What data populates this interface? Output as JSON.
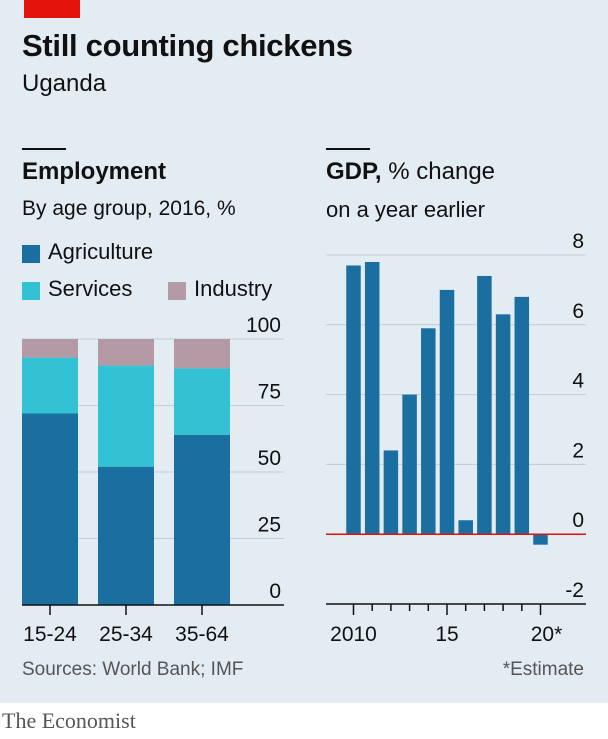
{
  "header": {
    "title": "Still counting chickens",
    "subtitle": "Uganda"
  },
  "employment": {
    "title": "Employment",
    "subtitle": "By age group, 2016, %",
    "legend": [
      "Agriculture",
      "Services",
      "Industry"
    ]
  },
  "gdp": {
    "title_bold": "GDP,",
    "title_rest": " % change",
    "subtitle": "on a year earlier"
  },
  "footer": {
    "source": "Sources: World Bank; IMF",
    "note": "*Estimate",
    "brand": "The Economist"
  },
  "colors": {
    "agriculture": "#1a6ea0",
    "services": "#33c1d4",
    "industry": "#b49aa4",
    "gdp_bar": "#1a6ea0",
    "zero_line": "#e3120b",
    "panel": "#e3ecf2",
    "red_tag": "#e3120b"
  },
  "chart_data": [
    {
      "type": "bar",
      "stacked": true,
      "title": "Employment",
      "subtitle": "By age group, 2016, %",
      "categories": [
        "15-24",
        "25-34",
        "35-64"
      ],
      "series": [
        {
          "name": "Agriculture",
          "values": [
            72,
            52,
            64
          ]
        },
        {
          "name": "Services",
          "values": [
            21,
            38,
            25
          ]
        },
        {
          "name": "Industry",
          "values": [
            7,
            10,
            11
          ]
        }
      ],
      "ylim": [
        0,
        100
      ],
      "yticks": [
        0,
        25,
        50,
        75,
        100
      ],
      "ytick_side": "right",
      "grid": true,
      "legend_position": "top-left"
    },
    {
      "type": "bar",
      "title": "GDP, % change on a year earlier",
      "x": [
        2010,
        2011,
        2012,
        2013,
        2014,
        2015,
        2016,
        2017,
        2018,
        2019,
        2020
      ],
      "xtick_labels": [
        "2010",
        "15",
        "20*"
      ],
      "xtick_values": [
        2010,
        2015,
        2020
      ],
      "values": [
        7.7,
        7.8,
        2.4,
        4.0,
        5.9,
        7.0,
        0.4,
        7.4,
        6.3,
        6.8,
        -0.3
      ],
      "ylim": [
        -2,
        8
      ],
      "yticks": [
        -2,
        0,
        2,
        4,
        6,
        8
      ],
      "ytick_labels": [
        "-2",
        "0",
        "2",
        "4",
        "6",
        "8"
      ],
      "ytick_side": "right",
      "grid": true,
      "annotation": "*Estimate"
    }
  ]
}
